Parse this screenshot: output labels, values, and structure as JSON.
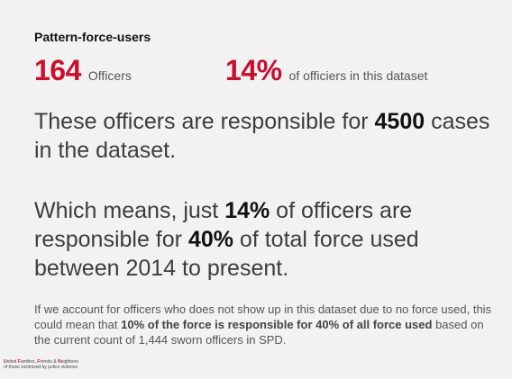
{
  "heading": "Pattern-force-users",
  "stats": {
    "officers_count": "164",
    "officers_label": "Officers",
    "percent": "14%",
    "percent_label": "of officiers in this dataset"
  },
  "paragraph1": {
    "pre": "These officers are responsible for ",
    "value": "4500",
    "post": " cases in the dataset."
  },
  "paragraph2": {
    "pre": "Which means, just ",
    "value1": "14%",
    "mid": " of officers are responsible for ",
    "value2": "40%",
    "post": " of total force used between 2014 to present."
  },
  "note": {
    "pre": "If we account for officers who does not show up in this dataset due to no force used, this could mean that ",
    "bold": "10% of the force is responsible for 40% of all force used",
    "post": " based on the current count of 1,444 sworn officers in SPD."
  },
  "footer": {
    "u": "U",
    "nited": "nited ",
    "f": "F",
    "amilies": "amilies, ",
    "fr": "F",
    "riends": "riends & ",
    "n": "N",
    "eighbors": "eighbors",
    "line2": "of those victimized by police violence"
  },
  "colors": {
    "accent": "#c8102e",
    "background": "#f2f2f2"
  }
}
